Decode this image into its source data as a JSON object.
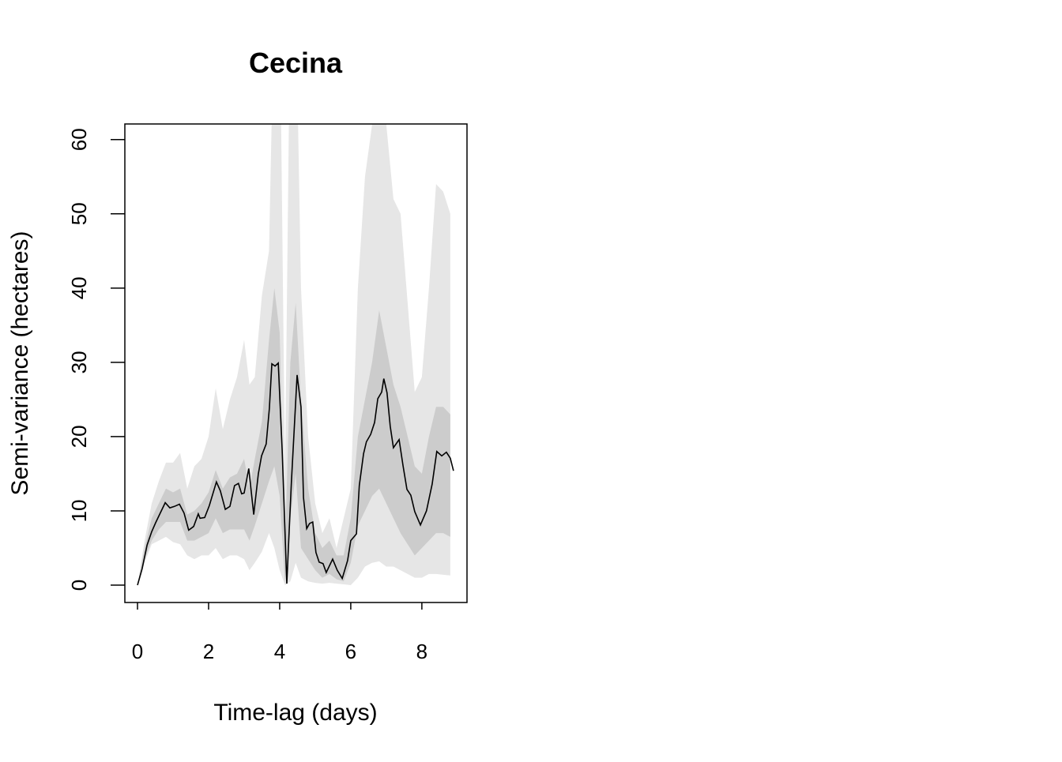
{
  "chart_data": {
    "type": "line",
    "title": "Cecina",
    "x_label": "Time-lag (days)",
    "y_label": "Semi-variance (hectares)",
    "x": [
      0,
      0.13,
      0.27,
      0.4,
      0.51,
      0.64,
      0.78,
      0.91,
      1.04,
      1.18,
      1.31,
      1.44,
      1.58,
      1.71,
      1.76,
      1.89,
      2.02,
      2.22,
      2.33,
      2.47,
      2.6,
      2.73,
      2.84,
      2.93,
      3.0,
      3.13,
      3.27,
      3.4,
      3.49,
      3.62,
      3.71,
      3.78,
      3.87,
      3.96,
      4.07,
      4.2,
      4.33,
      4.49,
      4.6,
      4.67,
      4.76,
      4.84,
      4.93,
      5.02,
      5.11,
      5.22,
      5.31,
      5.49,
      5.62,
      5.76,
      5.91,
      6.0,
      6.16,
      6.24,
      6.36,
      6.44,
      6.56,
      6.67,
      6.76,
      6.87,
      6.93,
      7.02,
      7.11,
      7.2,
      7.36,
      7.47,
      7.58,
      7.69,
      7.8,
      7.96,
      8.13,
      8.29,
      8.42,
      8.56,
      8.69,
      8.8,
      8.89
    ],
    "values": [
      0,
      2.2,
      5.4,
      7.2,
      8.4,
      9.7,
      11.1,
      10.4,
      10.6,
      10.9,
      9.7,
      7.4,
      7.9,
      9.6,
      9.0,
      9.1,
      10.7,
      13.9,
      12.7,
      10.2,
      10.6,
      13.4,
      13.7,
      12.3,
      12.4,
      15.7,
      9.5,
      15.0,
      17.4,
      19.0,
      23.8,
      29.8,
      29.5,
      29.9,
      18.2,
      0.2,
      13.9,
      28.3,
      24.0,
      11.8,
      7.6,
      8.3,
      8.5,
      4.4,
      3.1,
      2.9,
      1.7,
      3.5,
      2.0,
      0.9,
      3.3,
      6.0,
      6.9,
      13.4,
      17.7,
      19.3,
      20.3,
      21.9,
      25.1,
      26.0,
      27.8,
      25.9,
      21.4,
      18.5,
      19.6,
      16.1,
      12.9,
      12.1,
      9.9,
      8.1,
      10.0,
      13.6,
      18.0,
      17.4,
      17.9,
      17.1,
      15.4
    ],
    "color": "#000000",
    "bands": [
      {
        "color": "#e6e6e6",
        "x": [
          0,
          0.2,
          0.4,
          0.6,
          0.8,
          1.0,
          1.2,
          1.4,
          1.6,
          1.8,
          2.0,
          2.2,
          2.4,
          2.6,
          2.8,
          3.0,
          3.15,
          3.3,
          3.5,
          3.7,
          3.85,
          4.0,
          4.15,
          4.3,
          4.45,
          4.6,
          4.8,
          5.0,
          5.2,
          5.4,
          5.6,
          5.8,
          6.0,
          6.2,
          6.4,
          6.6,
          6.8,
          7.0,
          7.2,
          7.4,
          7.6,
          7.8,
          8.0,
          8.2,
          8.4,
          8.6,
          8.8
        ],
        "lower": [
          0,
          3,
          5.5,
          6,
          6.5,
          5.8,
          5.5,
          4,
          3.5,
          4,
          4,
          5,
          3.5,
          4,
          4,
          3.5,
          2,
          3,
          4.5,
          7,
          5,
          2,
          0,
          0.5,
          3,
          1,
          0.5,
          0.3,
          0.2,
          0.3,
          0.2,
          0.1,
          0,
          1,
          2.5,
          3,
          3.2,
          2.5,
          2.5,
          2,
          1.5,
          1,
          1,
          1.5,
          1.5,
          1.4,
          1.3
        ],
        "upper": [
          0,
          6,
          11,
          14,
          16.5,
          16.5,
          17.8,
          13,
          16,
          17,
          20,
          26.5,
          21,
          25,
          28,
          33,
          27,
          28,
          39,
          45,
          80,
          80,
          15,
          80,
          80,
          40,
          20,
          11,
          7,
          9,
          5,
          9,
          13,
          40,
          55,
          62,
          80,
          62,
          52,
          50,
          38,
          26,
          28,
          40,
          54,
          53,
          50
        ]
      },
      {
        "color": "#cccccc",
        "x": [
          0,
          0.2,
          0.4,
          0.6,
          0.8,
          1.0,
          1.2,
          1.4,
          1.6,
          1.8,
          2.0,
          2.2,
          2.4,
          2.6,
          2.8,
          3.0,
          3.15,
          3.3,
          3.5,
          3.7,
          3.85,
          4.0,
          4.15,
          4.3,
          4.45,
          4.6,
          4.8,
          5.0,
          5.2,
          5.4,
          5.6,
          5.8,
          6.0,
          6.2,
          6.4,
          6.6,
          6.8,
          7.0,
          7.2,
          7.4,
          7.6,
          7.8,
          8.0,
          8.2,
          8.4,
          8.6,
          8.8
        ],
        "lower": [
          0,
          3.5,
          6,
          7.5,
          8.5,
          8.5,
          8.5,
          6,
          6,
          6.5,
          7,
          9,
          7,
          7.5,
          7.5,
          7.5,
          6,
          8,
          11,
          14,
          16,
          12,
          0.3,
          9,
          15,
          5,
          3.5,
          2,
          1,
          1.5,
          0.8,
          0.5,
          3,
          8,
          10,
          12,
          13,
          11,
          9,
          7,
          5.5,
          4,
          5,
          6,
          7,
          7,
          6.5
        ],
        "upper": [
          0,
          5,
          9,
          11,
          13,
          12.5,
          13,
          9.5,
          10,
          11,
          12.5,
          15.5,
          13,
          14.5,
          15,
          17,
          13,
          17,
          22,
          33,
          40,
          34,
          5,
          30,
          38,
          25,
          13,
          7,
          5,
          6,
          4,
          4,
          9,
          20,
          25,
          30,
          37,
          32,
          27,
          24,
          20,
          16,
          15,
          20,
          24,
          24,
          23
        ]
      }
    ],
    "xlim": [
      -0.356,
      9.27
    ],
    "ylim": [
      -2.34,
      62.1
    ],
    "xticks": [
      0,
      2,
      4,
      6,
      8
    ],
    "yticks": [
      0,
      10,
      20,
      30,
      40,
      50,
      60
    ]
  }
}
